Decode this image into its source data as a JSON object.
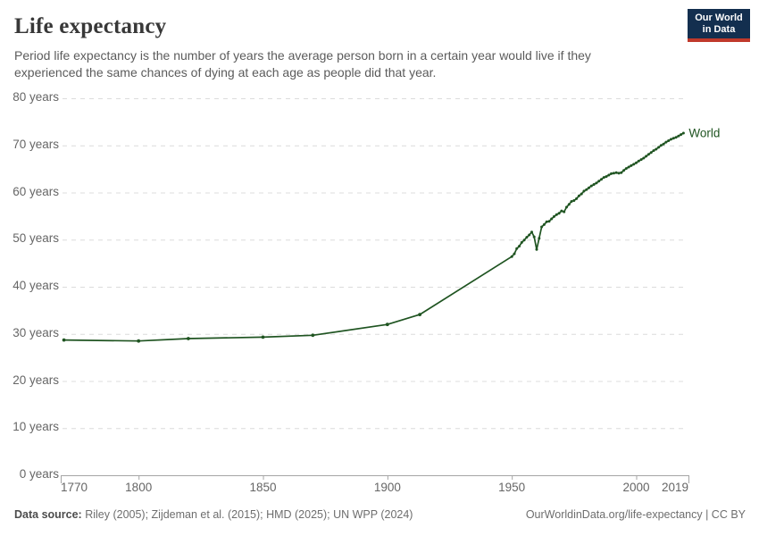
{
  "header": {
    "title": "Life expectancy",
    "subtitle": "Period life expectancy is the number of years the average person born in a certain year would live if they experienced the same chances of dying at each age as people did that year."
  },
  "logo": {
    "line1": "Our World",
    "line2": "in Data"
  },
  "footer": {
    "sources_label": "Data source:",
    "sources": " Riley (2005); Zijdeman et al. (2015); HMD (2025); UN WPP (2024)",
    "credit": "OurWorldinData.org/life-expectancy | CC BY"
  },
  "colors": {
    "line": "#1F5421",
    "grid": "#DCDCDC",
    "axis": "#A5A5A5",
    "tick_text": "#666666",
    "logo_navy": "#132F4F",
    "logo_red": "#C0392B"
  },
  "chart_data": {
    "type": "line",
    "title": "Life expectancy",
    "series_label": "World",
    "xlabel": "",
    "ylabel": "",
    "x_ticks": [
      1770,
      1800,
      1850,
      1900,
      1950,
      2000,
      2019
    ],
    "y_ticks": [
      0,
      10,
      20,
      30,
      40,
      50,
      60,
      70,
      80
    ],
    "y_tick_suffix": " years",
    "xlim": [
      1768.7,
      2021
    ],
    "ylim": [
      0,
      80
    ],
    "grid": "horizontal-dashed",
    "legend_position": "end-of-line",
    "points": [
      [
        1770,
        28.7
      ],
      [
        1800,
        28.5
      ],
      [
        1820,
        29.0
      ],
      [
        1850,
        29.3
      ],
      [
        1870,
        29.7
      ],
      [
        1900,
        32.0
      ],
      [
        1913,
        34.1
      ],
      [
        1950,
        46.4
      ],
      [
        1951,
        47.0
      ],
      [
        1952,
        48.1
      ],
      [
        1953,
        48.6
      ],
      [
        1954,
        49.4
      ],
      [
        1955,
        49.9
      ],
      [
        1956,
        50.5
      ],
      [
        1957,
        51.0
      ],
      [
        1958,
        51.6
      ],
      [
        1959,
        50.6
      ],
      [
        1960,
        47.9
      ],
      [
        1961,
        50.3
      ],
      [
        1962,
        52.7
      ],
      [
        1963,
        53.2
      ],
      [
        1964,
        53.8
      ],
      [
        1965,
        53.9
      ],
      [
        1966,
        54.4
      ],
      [
        1967,
        54.9
      ],
      [
        1968,
        55.3
      ],
      [
        1969,
        55.6
      ],
      [
        1970,
        56.1
      ],
      [
        1971,
        55.9
      ],
      [
        1972,
        56.9
      ],
      [
        1973,
        57.5
      ],
      [
        1974,
        58.1
      ],
      [
        1975,
        58.3
      ],
      [
        1976,
        58.7
      ],
      [
        1977,
        59.3
      ],
      [
        1978,
        59.7
      ],
      [
        1979,
        60.3
      ],
      [
        1980,
        60.6
      ],
      [
        1981,
        61.0
      ],
      [
        1982,
        61.4
      ],
      [
        1983,
        61.7
      ],
      [
        1984,
        62.0
      ],
      [
        1985,
        62.4
      ],
      [
        1986,
        62.8
      ],
      [
        1987,
        63.2
      ],
      [
        1988,
        63.4
      ],
      [
        1989,
        63.7
      ],
      [
        1990,
        64.0
      ],
      [
        1991,
        64.1
      ],
      [
        1992,
        64.2
      ],
      [
        1993,
        64.1
      ],
      [
        1994,
        64.2
      ],
      [
        1995,
        64.7
      ],
      [
        1996,
        65.1
      ],
      [
        1997,
        65.4
      ],
      [
        1998,
        65.7
      ],
      [
        1999,
        66.0
      ],
      [
        2000,
        66.3
      ],
      [
        2001,
        66.7
      ],
      [
        2002,
        67.0
      ],
      [
        2003,
        67.3
      ],
      [
        2004,
        67.7
      ],
      [
        2005,
        68.1
      ],
      [
        2006,
        68.5
      ],
      [
        2007,
        68.9
      ],
      [
        2008,
        69.2
      ],
      [
        2009,
        69.6
      ],
      [
        2010,
        70.0
      ],
      [
        2011,
        70.3
      ],
      [
        2012,
        70.7
      ],
      [
        2013,
        71.0
      ],
      [
        2014,
        71.3
      ],
      [
        2015,
        71.5
      ],
      [
        2016,
        71.7
      ],
      [
        2017,
        72.0
      ],
      [
        2018,
        72.3
      ],
      [
        2019,
        72.6
      ]
    ]
  }
}
